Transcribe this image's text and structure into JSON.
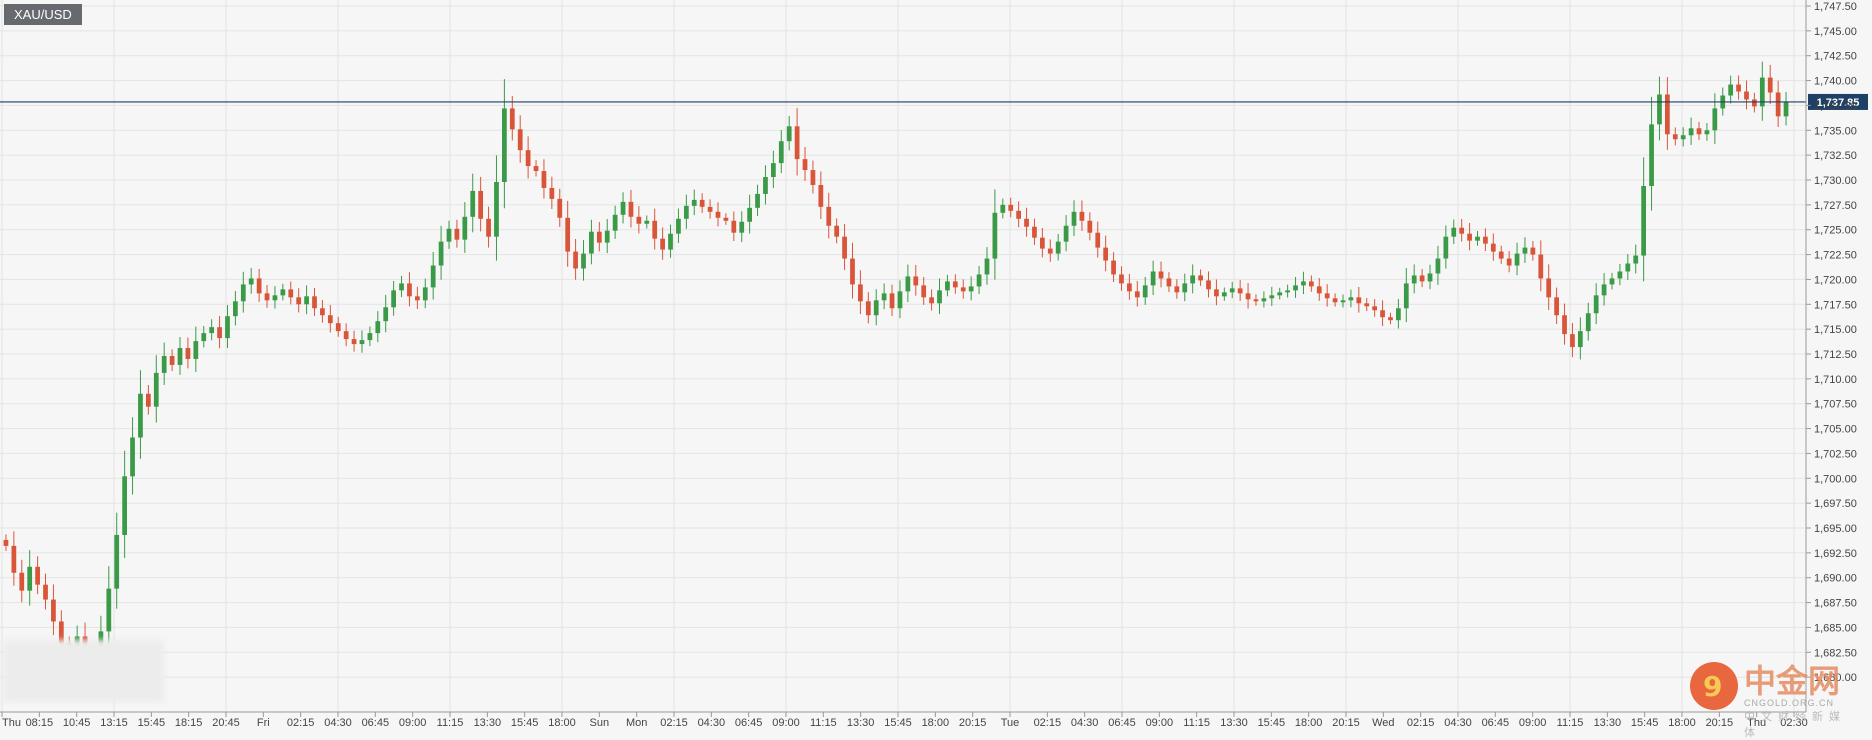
{
  "symbol": "XAU/USD",
  "watermark": {
    "logo": "9",
    "brand": "中金网",
    "sub": "CNGOLD.ORG.CN",
    "cn": "中文财经新媒体"
  },
  "current_price_label": "1,737.85",
  "colors": {
    "up": "#3a9a47",
    "down": "#d9553a",
    "price_line": "#1e3f66",
    "grid": "#e4e4e4",
    "axis": "#999999"
  },
  "chart_data": {
    "type": "candlestick",
    "title": "",
    "xlabel": "",
    "ylabel": "",
    "ylim": [
      1677.5,
      1747.5
    ],
    "grid": true,
    "y_ticks": [
      1680.0,
      1682.5,
      1685.0,
      1687.5,
      1690.0,
      1692.5,
      1695.0,
      1697.5,
      1700.0,
      1702.5,
      1705.0,
      1707.5,
      1710.0,
      1712.5,
      1715.0,
      1717.5,
      1720.0,
      1722.5,
      1725.0,
      1727.5,
      1730.0,
      1732.5,
      1735.0,
      1737.5,
      1740.0,
      1742.5,
      1745.0,
      1747.5
    ],
    "y_tick_labels": [
      "1,680.00",
      "1,682.50",
      "1,685.00",
      "1,687.50",
      "1,690.00",
      "1,692.50",
      "1,695.00",
      "1,697.50",
      "1,700.00",
      "1,702.50",
      "1,705.00",
      "1,707.50",
      "1,710.00",
      "1,712.50",
      "1,715.00",
      "1,717.50",
      "1,720.00",
      "1,722.50",
      "1,725.00",
      "1,727.50",
      "1,730.00",
      "1,732.50",
      "1,735.00",
      "1,737.50",
      "1,740.00",
      "1,742.50",
      "1,745.00",
      "1,747.50"
    ],
    "x_tick_labels": [
      "Thu",
      "08:15",
      "10:45",
      "13:15",
      "15:45",
      "18:15",
      "20:45",
      "Fri",
      "02:15",
      "04:30",
      "06:45",
      "09:00",
      "11:15",
      "13:30",
      "15:45",
      "18:00",
      "Sun",
      "Mon",
      "02:15",
      "04:30",
      "06:45",
      "09:00",
      "11:15",
      "13:30",
      "15:45",
      "18:00",
      "20:15",
      "Tue",
      "02:15",
      "04:30",
      "06:45",
      "09:00",
      "11:15",
      "13:30",
      "15:45",
      "18:00",
      "20:15",
      "Wed",
      "02:15",
      "04:30",
      "06:45",
      "09:00",
      "11:15",
      "13:30",
      "15:45",
      "18:00",
      "20:15",
      "Thu",
      "02:30"
    ],
    "current_price": 1737.85,
    "closes": [
      1693.2,
      1690.5,
      1688.7,
      1691.1,
      1689.3,
      1687.8,
      1685.6,
      1683.4,
      1682.9,
      1684.1,
      1682.5,
      1681.8,
      1684.6,
      1688.9,
      1694.3,
      1700.2,
      1704.1,
      1708.5,
      1707.2,
      1710.6,
      1712.3,
      1711.4,
      1713.1,
      1712.0,
      1713.8,
      1714.6,
      1715.2,
      1714.1,
      1716.3,
      1717.8,
      1719.5,
      1720.1,
      1718.6,
      1717.9,
      1718.4,
      1719.0,
      1718.2,
      1717.5,
      1718.3,
      1717.1,
      1716.4,
      1715.6,
      1714.8,
      1714.0,
      1713.5,
      1713.9,
      1714.6,
      1715.8,
      1717.2,
      1718.9,
      1719.6,
      1718.3,
      1717.9,
      1719.2,
      1721.4,
      1723.8,
      1725.1,
      1724.0,
      1726.3,
      1728.9,
      1726.1,
      1724.3,
      1729.8,
      1737.2,
      1735.1,
      1733.0,
      1731.4,
      1730.9,
      1729.2,
      1728.1,
      1726.2,
      1722.8,
      1721.1,
      1722.6,
      1724.8,
      1723.7,
      1724.9,
      1726.5,
      1727.8,
      1726.3,
      1725.6,
      1725.9,
      1724.1,
      1723.0,
      1724.6,
      1726.1,
      1727.4,
      1728.0,
      1727.3,
      1726.8,
      1726.2,
      1725.9,
      1724.7,
      1725.8,
      1727.2,
      1728.6,
      1730.3,
      1731.7,
      1733.9,
      1735.4,
      1732.1,
      1731.0,
      1729.5,
      1727.3,
      1725.4,
      1724.3,
      1722.1,
      1719.5,
      1717.8,
      1716.4,
      1717.9,
      1718.6,
      1717.1,
      1718.8,
      1720.3,
      1719.4,
      1718.2,
      1717.6,
      1718.9,
      1719.8,
      1719.2,
      1718.8,
      1719.3,
      1720.5,
      1722.1,
      1726.7,
      1727.5,
      1726.9,
      1726.1,
      1725.3,
      1724.2,
      1723.1,
      1722.6,
      1723.8,
      1725.4,
      1726.8,
      1725.9,
      1724.7,
      1723.2,
      1721.9,
      1720.5,
      1719.6,
      1718.8,
      1718.2,
      1719.4,
      1720.8,
      1720.1,
      1719.3,
      1718.7,
      1719.6,
      1720.4,
      1719.9,
      1719.0,
      1718.3,
      1718.7,
      1719.1,
      1718.6,
      1718.0,
      1717.8,
      1718.1,
      1718.4,
      1718.7,
      1718.9,
      1719.4,
      1719.8,
      1719.3,
      1718.6,
      1718.1,
      1717.7,
      1717.9,
      1718.2,
      1717.6,
      1717.3,
      1716.9,
      1716.2,
      1715.9,
      1717.1,
      1719.6,
      1720.4,
      1719.8,
      1720.6,
      1722.1,
      1724.3,
      1725.2,
      1724.6,
      1723.9,
      1724.3,
      1723.6,
      1722.8,
      1722.1,
      1721.4,
      1722.6,
      1723.2,
      1722.5,
      1720.1,
      1718.2,
      1716.4,
      1714.5,
      1713.2,
      1714.8,
      1716.6,
      1718.4,
      1719.5,
      1720.1,
      1720.8,
      1721.6,
      1722.4,
      1729.4,
      1735.6,
      1738.6,
      1734.6,
      1734.1,
      1734.5,
      1735.2,
      1734.6,
      1735.0,
      1737.2,
      1738.5,
      1739.6,
      1738.9,
      1738.1,
      1737.4,
      1740.3,
      1738.8,
      1736.4,
      1737.85
    ]
  }
}
